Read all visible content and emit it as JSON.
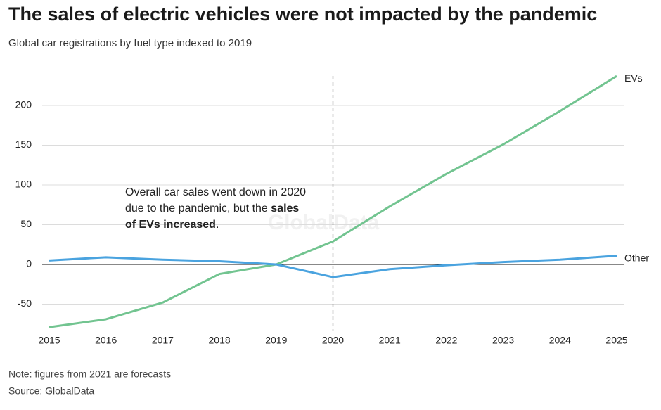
{
  "chart_data": {
    "type": "line",
    "title": "The sales of electric vehicles were not impacted by the pandemic",
    "subtitle": "Global car registrations by fuel type indexed to 2019",
    "x": [
      2015,
      2016,
      2017,
      2018,
      2019,
      2020,
      2021,
      2022,
      2023,
      2024,
      2025
    ],
    "series": [
      {
        "name": "EVs",
        "color": "#72c490",
        "values": [
          -79,
          -69,
          -48,
          -12,
          0,
          29,
          73,
          114,
          151,
          193,
          237
        ]
      },
      {
        "name": "Other",
        "color": "#4aa3df",
        "values": [
          5,
          9,
          6,
          4,
          0,
          -16,
          -6,
          -1,
          3,
          6,
          11
        ]
      }
    ],
    "xlim": [
      2015,
      2025
    ],
    "xticks": [
      2015,
      2016,
      2017,
      2018,
      2019,
      2020,
      2021,
      2022,
      2023,
      2024,
      2025
    ],
    "ylim": [
      -85,
      245
    ],
    "yticks": [
      -50,
      0,
      50,
      100,
      150,
      200
    ],
    "grid": true,
    "vline": 2020,
    "annotation": {
      "lines": [
        [
          {
            "text": "Overall car sales went down in 2020",
            "bold": false
          }
        ],
        [
          {
            "text": "due to the pandemic, but the ",
            "bold": false
          },
          {
            "text": "sales",
            "bold": true
          }
        ],
        [
          {
            "text": "of EVs increased",
            "bold": true
          },
          {
            "text": ".",
            "bold": false
          }
        ]
      ]
    },
    "watermark": "GlobalData",
    "note": "Note: figures from 2021 are forecasts",
    "source": "Source: GlobalData"
  }
}
